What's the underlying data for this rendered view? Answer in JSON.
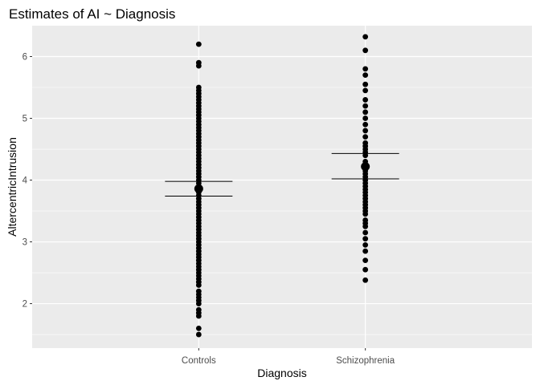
{
  "chart_data": {
    "type": "scatter",
    "title": "Estimates of AI ~ Diagnosis",
    "xlabel": "Diagnosis",
    "ylabel": "AltercentricIntrusion",
    "categories": [
      "Controls",
      "Schizophrenia"
    ],
    "ylim": [
      1.28,
      6.5
    ],
    "yticks": [
      2,
      3,
      4,
      5,
      6
    ],
    "ytick_labels": [
      "2",
      "3",
      "4",
      "5",
      "6"
    ],
    "grid": true,
    "series": [
      {
        "category": "Controls",
        "points": [
          1.5,
          1.6,
          1.8,
          1.85,
          1.9,
          2.0,
          2.05,
          2.1,
          2.15,
          2.2,
          2.3,
          2.35,
          2.4,
          2.45,
          2.5,
          2.55,
          2.6,
          2.65,
          2.7,
          2.75,
          2.8,
          2.85,
          2.9,
          2.95,
          3.0,
          3.05,
          3.1,
          3.15,
          3.2,
          3.25,
          3.3,
          3.35,
          3.4,
          3.45,
          3.5,
          3.55,
          3.6,
          3.65,
          3.7,
          3.75,
          3.8,
          3.85,
          3.9,
          3.95,
          4.0,
          4.05,
          4.1,
          4.15,
          4.2,
          4.25,
          4.3,
          4.35,
          4.4,
          4.45,
          4.5,
          4.55,
          4.6,
          4.65,
          4.7,
          4.75,
          4.8,
          4.85,
          4.9,
          4.95,
          5.0,
          5.05,
          5.1,
          5.15,
          5.2,
          5.25,
          5.3,
          5.35,
          5.4,
          5.45,
          5.5,
          5.85,
          5.9,
          6.2
        ],
        "mean_marker": 3.86,
        "ci": [
          3.74,
          3.98
        ]
      },
      {
        "category": "Schizophrenia",
        "points": [
          2.38,
          2.55,
          2.7,
          2.85,
          2.95,
          3.05,
          3.15,
          3.25,
          3.3,
          3.35,
          3.45,
          3.5,
          3.55,
          3.6,
          3.65,
          3.7,
          3.75,
          3.8,
          3.85,
          3.9,
          3.95,
          4.0,
          4.05,
          4.1,
          4.15,
          4.2,
          4.25,
          4.3,
          4.4,
          4.45,
          4.5,
          4.55,
          4.6,
          4.7,
          4.8,
          4.9,
          5.0,
          5.1,
          5.2,
          5.3,
          5.45,
          5.55,
          5.7,
          5.8,
          6.1,
          6.32
        ],
        "mean_marker": 4.22,
        "ci": [
          4.02,
          4.43
        ]
      }
    ]
  }
}
